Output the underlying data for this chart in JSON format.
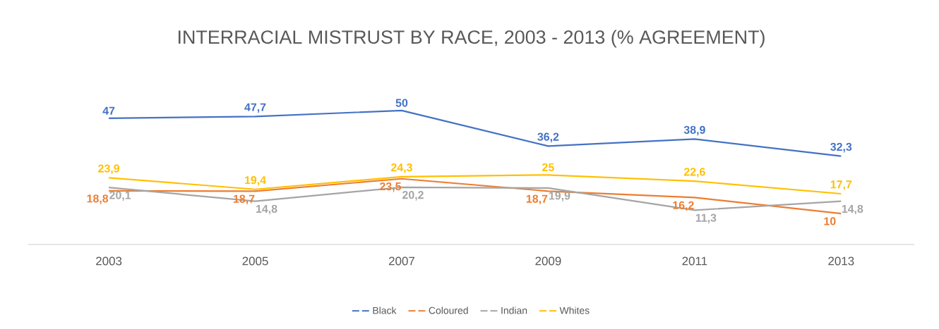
{
  "chart_data": {
    "type": "line",
    "title": "INTERRACIAL MISTRUST BY RACE, 2003 - 2013 (% AGREEMENT)",
    "categories": [
      "2003",
      "2005",
      "2007",
      "2009",
      "2011",
      "2013"
    ],
    "series": [
      {
        "name": "Black",
        "color": "#4472c4",
        "values": [
          47,
          47.7,
          50,
          36.2,
          38.9,
          32.3
        ],
        "value_labels": [
          "47",
          "47,7",
          "50",
          "36,2",
          "38,9",
          "32,3"
        ]
      },
      {
        "name": "Coloured",
        "color": "#ed7d31",
        "values": [
          18.8,
          18.7,
          23.5,
          18.7,
          16.2,
          10
        ],
        "value_labels": [
          "18,8",
          "18,7",
          "23,5",
          "18,7",
          "16,2",
          "10"
        ]
      },
      {
        "name": "Indian",
        "color": "#a5a5a5",
        "values": [
          20.1,
          14.8,
          20.2,
          19.9,
          11.3,
          14.8
        ],
        "value_labels": [
          "20,1",
          "14,8",
          "20,2",
          "19,9",
          "11,3",
          "14,8"
        ]
      },
      {
        "name": "Whites",
        "color": "#ffc000",
        "values": [
          23.9,
          19.4,
          24.3,
          25,
          22.6,
          17.7
        ],
        "value_labels": [
          "23,9",
          "19,4",
          "24,3",
          "25",
          "22,6",
          "17,7"
        ]
      }
    ],
    "tick_labels": "x",
    "legend": "bottom",
    "marker": "none",
    "line_style": "solid"
  }
}
